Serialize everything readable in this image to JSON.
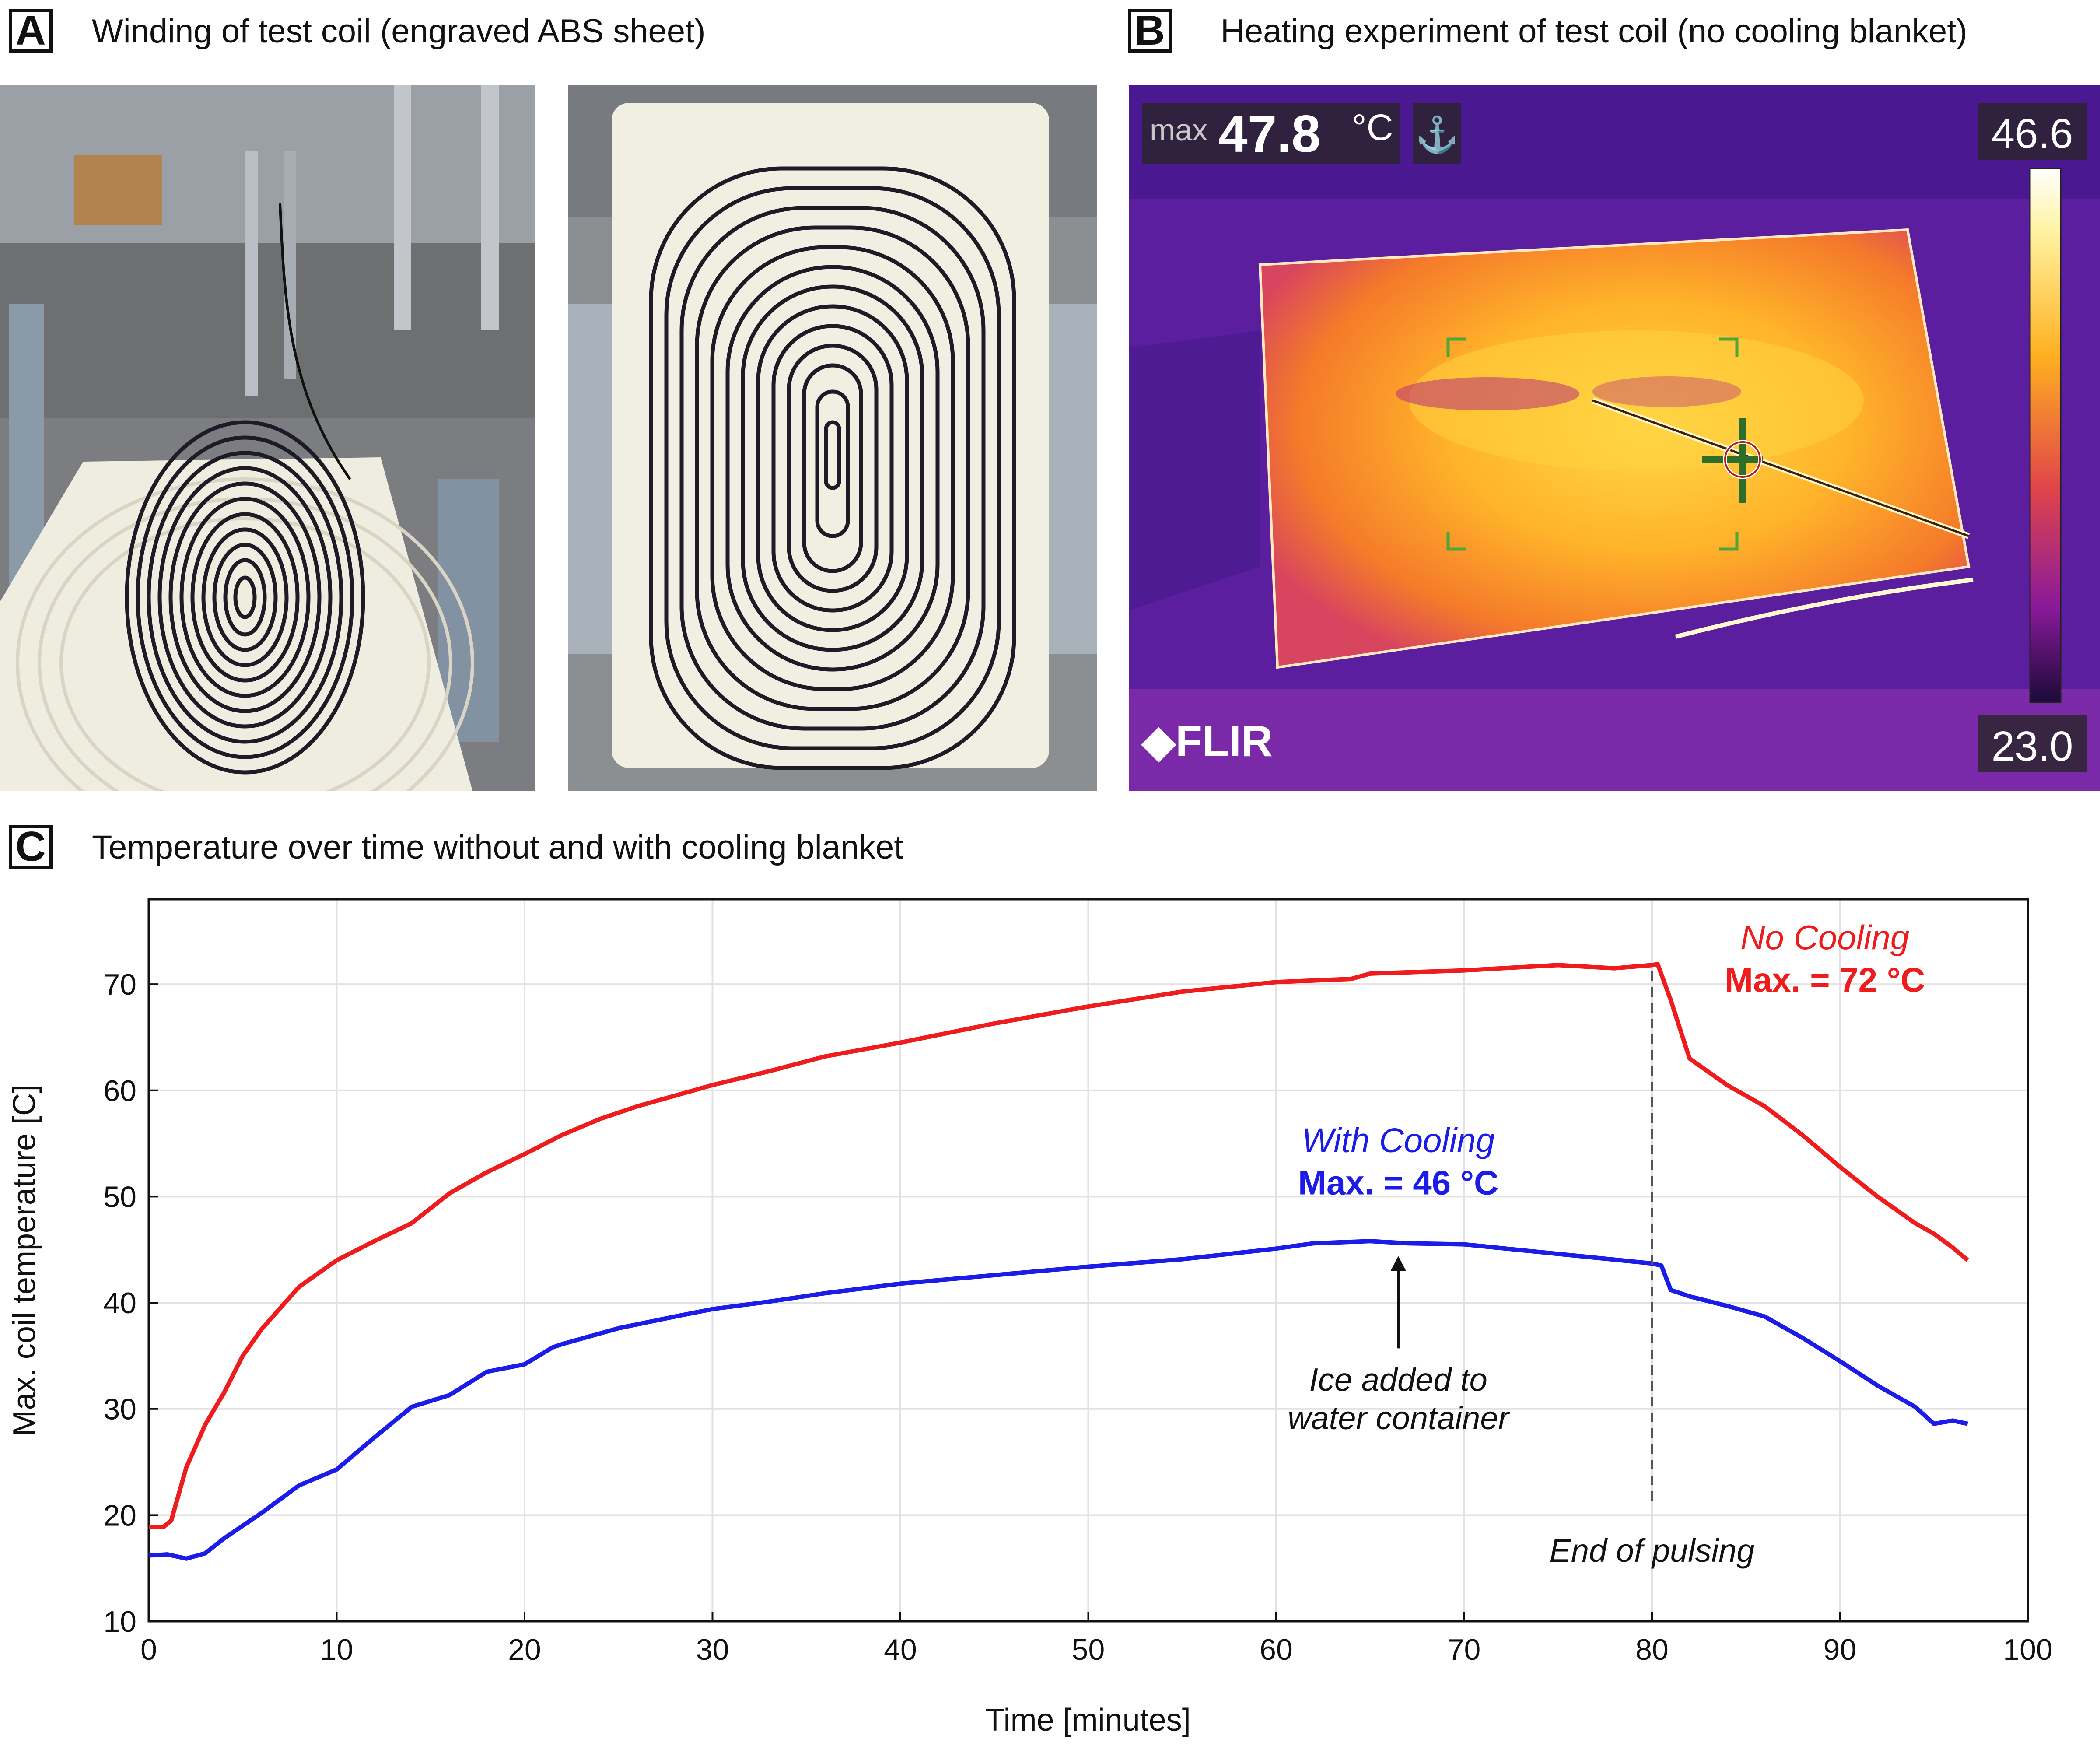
{
  "panels": {
    "a": {
      "letter": "A",
      "title": "Winding of test coil (engraved ABS sheet)"
    },
    "b": {
      "letter": "B",
      "title": "Heating experiment of test coil (no cooling blanket)"
    },
    "c": {
      "letter": "C",
      "title": "Temperature over time without and with cooling blanket"
    }
  },
  "thermal": {
    "max_label": "max",
    "max_value": "47.8",
    "max_unit": "°C",
    "scale_high": "46.6",
    "scale_low": "23.0",
    "brand": "FLIR"
  },
  "chart_data": {
    "type": "line",
    "xlabel": "Time [minutes]",
    "ylabel": "Max. coil temperature [C]",
    "xlim": [
      0,
      100
    ],
    "ylim": [
      10,
      78
    ],
    "xticks": [
      0,
      10,
      20,
      30,
      40,
      50,
      60,
      70,
      80,
      90,
      100
    ],
    "yticks": [
      10,
      20,
      30,
      40,
      50,
      60,
      70
    ],
    "grid": true,
    "series": [
      {
        "name": "No Cooling",
        "color": "#ee1c1c",
        "x": [
          0,
          0.8,
          1.2,
          2,
          3,
          4,
          5,
          6,
          8,
          10,
          12,
          14,
          16,
          18,
          20,
          22,
          24,
          26,
          28,
          30,
          33,
          36,
          40,
          45,
          50,
          55,
          60,
          64,
          65,
          70,
          75,
          78,
          80,
          80.3,
          81,
          82,
          84,
          86,
          88,
          90,
          92,
          94,
          95,
          96,
          96.8
        ],
        "y": [
          18.9,
          18.9,
          19.5,
          24.5,
          28.5,
          31.5,
          35,
          37.5,
          41.5,
          44,
          45.8,
          47.5,
          50.3,
          52.3,
          54,
          55.8,
          57.3,
          58.5,
          59.5,
          60.5,
          61.8,
          63.2,
          64.5,
          66.3,
          67.9,
          69.3,
          70.2,
          70.5,
          71,
          71.3,
          71.8,
          71.5,
          71.8,
          71.9,
          68.5,
          63,
          60.5,
          58.5,
          55.8,
          52.8,
          50,
          47.5,
          46.5,
          45.2,
          44
        ]
      },
      {
        "name": "With Cooling",
        "color": "#1c1ce8",
        "x": [
          0,
          1,
          2,
          3,
          4,
          6,
          8,
          10,
          12,
          14,
          16,
          18,
          20,
          21.5,
          22,
          25,
          28,
          30,
          33,
          36,
          40,
          45,
          50,
          55,
          60,
          62,
          65,
          67,
          70,
          75,
          80,
          80.5,
          81,
          82,
          84,
          86,
          88,
          90,
          92,
          94,
          95,
          96,
          96.8
        ],
        "y": [
          16.2,
          16.3,
          15.9,
          16.4,
          17.8,
          20.2,
          22.8,
          24.3,
          27.3,
          30.2,
          31.3,
          33.5,
          34.2,
          35.8,
          36.1,
          37.6,
          38.7,
          39.4,
          40.1,
          40.9,
          41.8,
          42.6,
          43.4,
          44.1,
          45.1,
          45.6,
          45.8,
          45.6,
          45.5,
          44.6,
          43.7,
          43.5,
          41.2,
          40.6,
          39.7,
          38.7,
          36.7,
          34.5,
          32.2,
          30.2,
          28.6,
          28.9,
          28.6
        ]
      }
    ],
    "annotations": {
      "no_cooling_label": "No Cooling",
      "no_cooling_max": "Max. = 72 °C",
      "with_cooling_label": "With Cooling",
      "with_cooling_max": "Max. = 46 °C",
      "ice_line1": "Ice added to",
      "ice_line2": "water container",
      "end_pulsing": "End of pulsing"
    },
    "markers": {
      "end_of_pulsing_x": 80,
      "ice_added_x": 66.5
    }
  }
}
